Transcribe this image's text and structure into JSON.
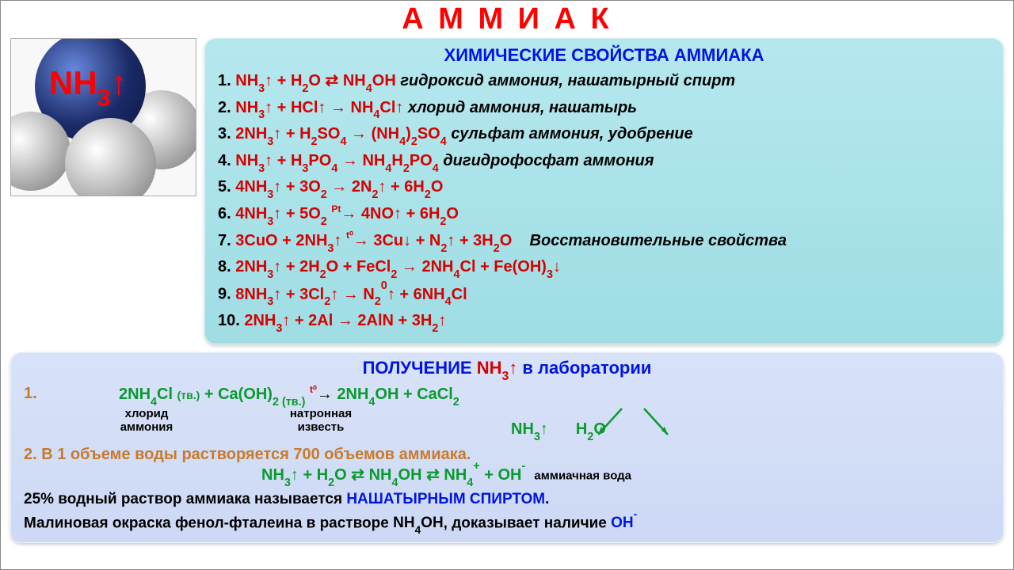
{
  "title": "А М М И А К",
  "title_color": "#ff0000",
  "molecule_formula_html": "NH<sub>3</sub>↑",
  "panel_top": {
    "heading": "ХИМИЧЕСКИЕ СВОЙСТВА АММИАКА",
    "heading_color": "#0015e4",
    "background": "#a8e0e8",
    "reactions": [
      {
        "n": "1.",
        "f": "NH<sub>3</sub>↑ + H<sub>2</sub>O ⇄ NH<sub>4</sub>OH",
        "c": "гидроксид аммония, нашатырный спирт"
      },
      {
        "n": "2.",
        "f": "NH<sub>3</sub>↑ + HCl↑ → NH<sub>4</sub>Cl↑",
        "c": "хлорид аммония, нашатырь"
      },
      {
        "n": "3.",
        "f": "2NH<sub>3</sub>↑ + H<sub>2</sub>SO<sub>4</sub> → (NH<sub>4</sub>)<sub>2</sub>SO<sub>4</sub>",
        "c": "сульфат аммония, удобрение"
      },
      {
        "n": "4.",
        "f": "NH<sub>3</sub>↑ + H<sub>3</sub>PO<sub>4</sub> → NH<sub>4</sub>H<sub>2</sub>PO<sub>4</sub>",
        "c": "дигидрофосфат аммония"
      },
      {
        "n": "5.",
        "f": "4NH<sub>3</sub>↑ + 3O<sub>2</sub> → 2N<sub>2</sub>↑ + 6H<sub>2</sub>O",
        "c": ""
      },
      {
        "n": "6.",
        "f": "4NH<sub>3</sub>↑ + 5O<sub>2</sub> <span class='arrow-cond'>Pt</span>→ 4NO↑ + 6H<sub>2</sub>O",
        "c": ""
      },
      {
        "n": "7.",
        "f": "3CuO + 2NH<sub>3</sub>↑ <span class='arrow-cond'>t⁰</span>→ 3Cu↓ + N<sub>2</sub>↑ + 3H<sub>2</sub>O",
        "c": "&nbsp;&nbsp;&nbsp;Восстановительные свойства"
      },
      {
        "n": "8.",
        "f": "2NH<sub>3</sub>↑ + 2H<sub>2</sub>O + FeCl<sub>2</sub> → 2NH<sub>4</sub>Cl + Fe(OH)<sub>3</sub>↓",
        "c": ""
      },
      {
        "n": "9.",
        "f": "8NH<sub>3</sub>↑ + 3Cl<sub>2</sub>↑ → N<sub>2</sub><sup>0</sup>↑ + 6NH<sub>4</sub>Cl",
        "c": ""
      },
      {
        "n": "10.",
        "f": "2NH<sub>3</sub>↑ + 2Al → 2AlN + 3H<sub>2</sub>↑",
        "c": ""
      }
    ]
  },
  "panel_bottom": {
    "heading_prefix": "ПОЛУЧЕНИЕ ",
    "heading_formula": "NH<sub>3</sub>↑",
    "heading_suffix": " в лаборатории",
    "background": "#d4dff6",
    "eq1_html": "2NH<sub>4</sub>Cl <span class='subscript-paren'>(тв.)</span> + Ca(OH)<sub>2 (тв.)</sub> <span style='color:#d40202;font-size:12px;position:relative;top:-0.7em;'>t⁰</span><span class='black'>→</span> 2NH<sub>4</sub>OH + CaCl<sub>2</sub>",
    "label_left_1": "хлорид",
    "label_left_2": "аммония",
    "label_right_1": "натронная",
    "label_right_2": "известь",
    "prod1": "NH<sub>3</sub>↑",
    "prod2": "H<sub>2</sub>O",
    "line2_num": "2.",
    "line2_text": "В 1 объеме воды растворяется 700 объемов аммиака.",
    "eq2_html": "NH<sub>3</sub>↑ + H<sub>2</sub>O ⇄ NH<sub>4</sub>OH ⇄ NH<sub>4</sub><sup>+</sup> + OH<sup>-</sup>",
    "eq2_comment": "аммиачная вода",
    "desc1_a": "25% водный раствор аммиака называется ",
    "desc1_b": "НАШАТЫРНЫМ СПИРТОМ",
    "desc2_a": "Малиновая окраска фенол-фталеина в растворе ",
    "desc2_f": "NH<sub>4</sub>OH",
    "desc2_b": ", доказывает наличие ",
    "desc2_c": "OH<sup>-</sup>"
  }
}
